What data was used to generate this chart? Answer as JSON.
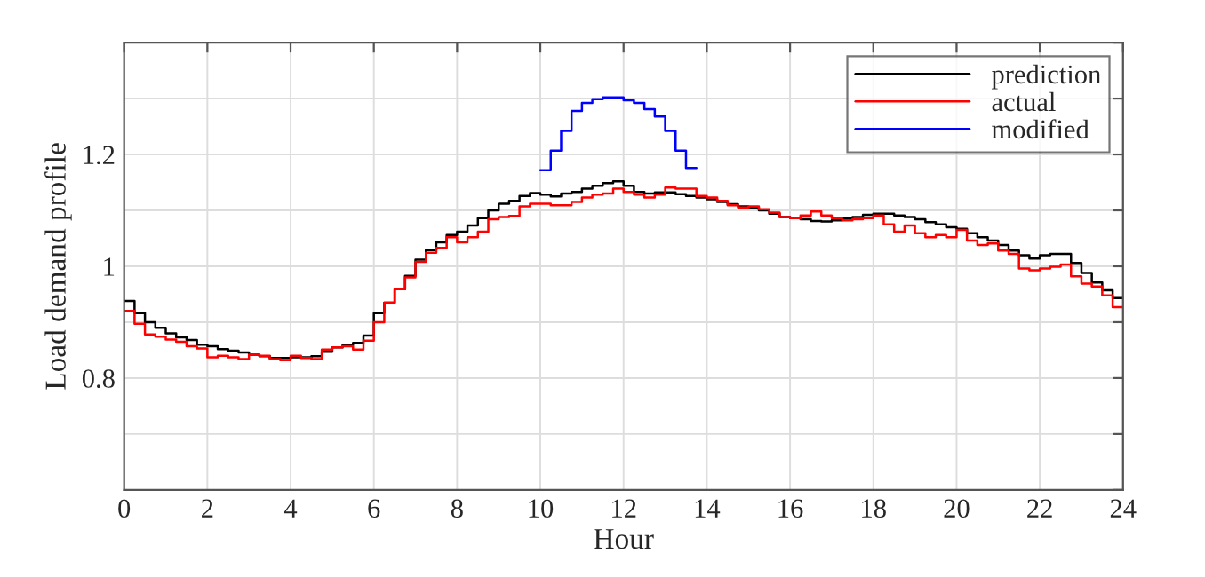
{
  "chart_data": {
    "type": "step",
    "xlabel": "Hour",
    "ylabel": "Load demand profile",
    "x": [
      0,
      0.25,
      0.5,
      0.75,
      1,
      1.25,
      1.5,
      1.75,
      2,
      2.25,
      2.5,
      2.75,
      3,
      3.25,
      3.5,
      3.75,
      4,
      4.25,
      4.5,
      4.75,
      5,
      5.25,
      5.5,
      5.75,
      6,
      6.25,
      6.5,
      6.75,
      7,
      7.25,
      7.5,
      7.75,
      8,
      8.25,
      8.5,
      8.75,
      9,
      9.25,
      9.5,
      9.75,
      10,
      10.25,
      10.5,
      10.75,
      11,
      11.25,
      11.5,
      11.75,
      12,
      12.25,
      12.5,
      12.75,
      13,
      13.25,
      13.5,
      13.75,
      14,
      14.25,
      14.5,
      14.75,
      15,
      15.25,
      15.5,
      15.75,
      16,
      16.25,
      16.5,
      16.75,
      17,
      17.25,
      17.5,
      17.75,
      18,
      18.25,
      18.5,
      18.75,
      19,
      19.25,
      19.5,
      19.75,
      20,
      20.25,
      20.5,
      20.75,
      21,
      21.25,
      21.5,
      21.75,
      22,
      22.25,
      22.5,
      22.75,
      23,
      23.25,
      23.5,
      23.75,
      24
    ],
    "series": [
      {
        "name": "prediction",
        "color": "#000000",
        "values": [
          0.938,
          0.916,
          0.9,
          0.89,
          0.88,
          0.873,
          0.868,
          0.86,
          0.857,
          0.852,
          0.849,
          0.846,
          0.842,
          0.839,
          0.836,
          0.836,
          0.837,
          0.837,
          0.839,
          0.847,
          0.855,
          0.86,
          0.863,
          0.876,
          0.916,
          0.935,
          0.959,
          0.983,
          1.012,
          1.029,
          1.043,
          1.056,
          1.062,
          1.073,
          1.086,
          1.1,
          1.112,
          1.117,
          1.126,
          1.131,
          1.128,
          1.125,
          1.13,
          1.133,
          1.139,
          1.144,
          1.149,
          1.152,
          1.144,
          1.133,
          1.13,
          1.132,
          1.132,
          1.129,
          1.126,
          1.123,
          1.12,
          1.115,
          1.111,
          1.107,
          1.105,
          1.1,
          1.094,
          1.088,
          1.086,
          1.084,
          1.081,
          1.08,
          1.082,
          1.086,
          1.088,
          1.092,
          1.094,
          1.094,
          1.091,
          1.088,
          1.084,
          1.079,
          1.075,
          1.07,
          1.067,
          1.059,
          1.052,
          1.046,
          1.038,
          1.028,
          1.02,
          1.014,
          1.02,
          1.022,
          1.022,
          1.006,
          0.988,
          0.971,
          0.957,
          0.943,
          0.943
        ]
      },
      {
        "name": "actual",
        "color": "#ff0000",
        "values": [
          0.92,
          0.897,
          0.878,
          0.874,
          0.869,
          0.865,
          0.857,
          0.853,
          0.837,
          0.84,
          0.837,
          0.834,
          0.842,
          0.84,
          0.834,
          0.832,
          0.84,
          0.836,
          0.834,
          0.851,
          0.855,
          0.857,
          0.851,
          0.867,
          0.9,
          0.935,
          0.959,
          0.98,
          1.008,
          1.024,
          1.033,
          1.052,
          1.043,
          1.052,
          1.062,
          1.084,
          1.088,
          1.09,
          1.107,
          1.112,
          1.112,
          1.109,
          1.109,
          1.115,
          1.123,
          1.128,
          1.13,
          1.139,
          1.133,
          1.128,
          1.123,
          1.128,
          1.141,
          1.139,
          1.139,
          1.126,
          1.123,
          1.117,
          1.109,
          1.105,
          1.107,
          1.102,
          1.096,
          1.088,
          1.086,
          1.091,
          1.098,
          1.091,
          1.086,
          1.082,
          1.084,
          1.086,
          1.091,
          1.075,
          1.062,
          1.073,
          1.059,
          1.052,
          1.056,
          1.052,
          1.065,
          1.046,
          1.038,
          1.041,
          1.028,
          1.022,
          0.996,
          0.993,
          0.996,
          0.999,
          1.003,
          0.982,
          0.969,
          0.964,
          0.948,
          0.927,
          0.927
        ]
      },
      {
        "name": "modified",
        "color": "#0000ff",
        "x": [
          10,
          10.25,
          10.5,
          10.75,
          11,
          11.25,
          11.5,
          11.75,
          12,
          12.25,
          12.5,
          12.75,
          13,
          13.25,
          13.5,
          13.75
        ],
        "values": [
          1.172,
          1.207,
          1.242,
          1.278,
          1.292,
          1.299,
          1.302,
          1.302,
          1.297,
          1.292,
          1.281,
          1.268,
          1.242,
          1.207,
          1.176,
          1.176
        ]
      }
    ],
    "xlim": [
      0,
      24
    ],
    "xticks": [
      0,
      2,
      4,
      6,
      8,
      10,
      12,
      14,
      16,
      18,
      20,
      22,
      24
    ],
    "ylim": [
      0.6,
      1.4
    ],
    "yticks": [
      {
        "value": 0.6,
        "label": null
      },
      {
        "value": 0.7,
        "label": null
      },
      0.8,
      {
        "value": 0.9,
        "label": null
      },
      {
        "value": 1,
        "label": "1"
      },
      {
        "value": 1.1,
        "label": null
      },
      1.2,
      {
        "value": 1.3,
        "label": null
      },
      {
        "value": 1.4,
        "label": null
      }
    ],
    "grid": true,
    "legend": "top right"
  }
}
